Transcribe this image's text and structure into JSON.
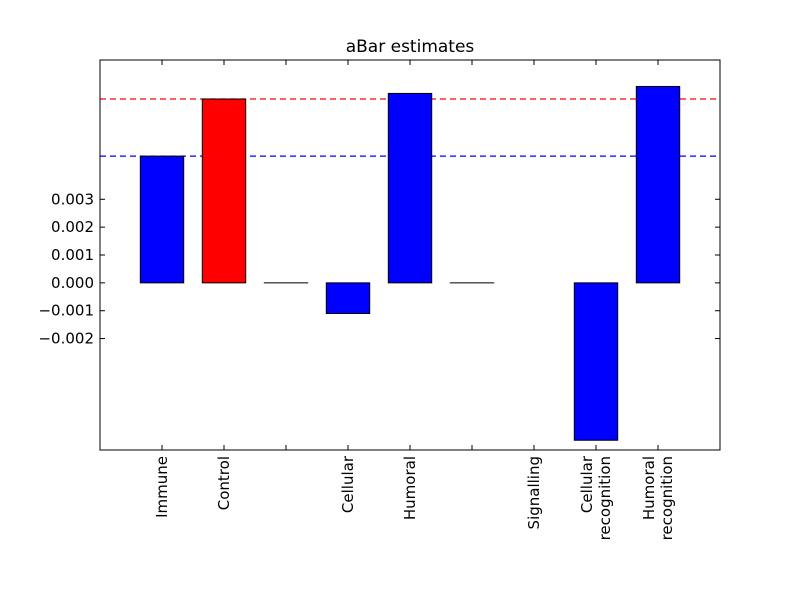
{
  "chart_data": {
    "type": "bar",
    "title": "aBar estimates",
    "xlabel": "",
    "ylabel": "",
    "ylim": [
      -0.006,
      0.008
    ],
    "yticks": [
      "0.003",
      "0.002",
      "0.001",
      "0.000",
      "−0.001",
      "−0.002"
    ],
    "ytick_values": [
      0.003,
      0.002,
      0.001,
      0.0,
      -0.001,
      -0.002
    ],
    "categories": [
      {
        "label": "Immune",
        "value": 0.00455,
        "color": "#0000ff"
      },
      {
        "label": "Control",
        "value": 0.0066,
        "color": "#ff0000"
      },
      {
        "label": "",
        "value": 0.0,
        "color": "#0000ff"
      },
      {
        "label": "Cellular",
        "value": -0.0011,
        "color": "#0000ff"
      },
      {
        "label": "Humoral",
        "value": 0.0068,
        "color": "#0000ff"
      },
      {
        "label": "",
        "value": 0.0,
        "color": "#0000ff"
      },
      {
        "label": "Signalling",
        "value": null,
        "color": "#0000ff"
      },
      {
        "label": "Cellular\nrecognition",
        "value": -0.00565,
        "color": "#0000ff"
      },
      {
        "label": "Humoral\nrecognition",
        "value": 0.00705,
        "color": "#0000ff"
      }
    ],
    "reference_lines": [
      {
        "value": 0.0066,
        "color": "#ff0000",
        "style": "dashed"
      },
      {
        "value": 0.00455,
        "color": "#0000ff",
        "style": "dashed"
      }
    ],
    "grid": false,
    "legend": "none"
  }
}
